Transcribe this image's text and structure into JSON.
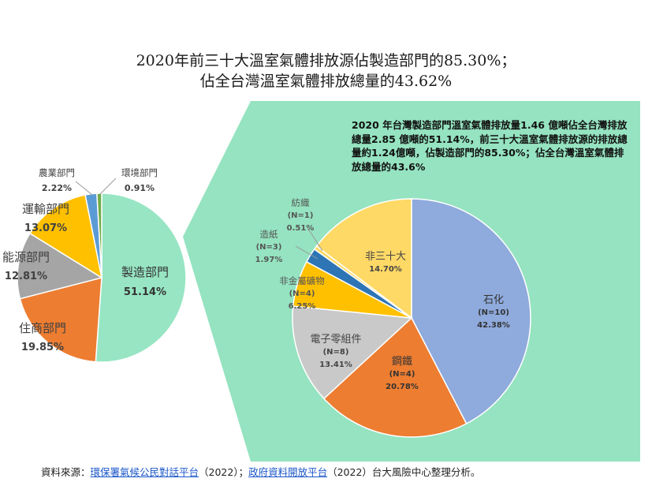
{
  "title_line1": "2020年前三十大溫室氣體排放源佔製造部門的85.30%；",
  "title_line2": "佔全台灣溫室氣體排放總量的43.62%",
  "summary_text": "2020 年台灣製造部門溫室氣體排放量1.46 億噸佔全台灣排放總量2.85 億噸的51.14%，前三十大溫室氣體排放源的排放總量約1.24億噸，佔製造部門的85.30%；佔全台灣溫室氣體排放總量的43.6%",
  "source": {
    "prefix": "資料來源：",
    "link1": "環保署氣候公民對話平台",
    "mid": "（2022）；",
    "link2": "政府資料開放平台",
    "suffix": "（2022）台大風險中心整理分析。"
  },
  "colors": {
    "highlight_band": "#95e3c0",
    "manufacturing": "#97e5c3",
    "residential_commercial": "#ed7d31",
    "energy": "#a5a5a5",
    "transport": "#ffc000",
    "agriculture": "#5b9bd5",
    "environment": "#70ad47",
    "petrochem": "#8faadc",
    "steel": "#ed7d31",
    "electronics": "#c9c9c9",
    "nonmetal": "#ffc000",
    "paper": "#2e75b6",
    "textile": "#ffd966",
    "non_top30": "#ffd966"
  },
  "chart_data": [
    {
      "type": "pie",
      "series": [
        {
          "categories": [
            "製造部門",
            "住商部門",
            "能源部門",
            "運輸部門",
            "農業部門",
            "環境部門"
          ],
          "values": [
            51.14,
            19.85,
            12.81,
            13.07,
            2.22,
            0.91
          ],
          "labels": [
            "51.14%",
            "19.85%",
            "12.81%",
            "13.07%",
            "2.22%",
            "0.91%"
          ]
        }
      ]
    },
    {
      "type": "pie",
      "series": [
        {
          "categories": [
            "石化",
            "鋼鐵",
            "電子零組件",
            "非金屬礦物",
            "造紙",
            "紡織",
            "非三十大"
          ],
          "counts": [
            "(N=10)",
            "(N=4)",
            "(N=8)",
            "(N=4)",
            "(N=3)",
            "(N=1)",
            ""
          ],
          "values": [
            42.38,
            20.78,
            13.41,
            6.25,
            1.97,
            0.51,
            14.7
          ],
          "labels": [
            "42.38%",
            "20.78%",
            "13.41%",
            "6.25%",
            "1.97%",
            "0.51%",
            "14.70%"
          ]
        }
      ]
    }
  ]
}
